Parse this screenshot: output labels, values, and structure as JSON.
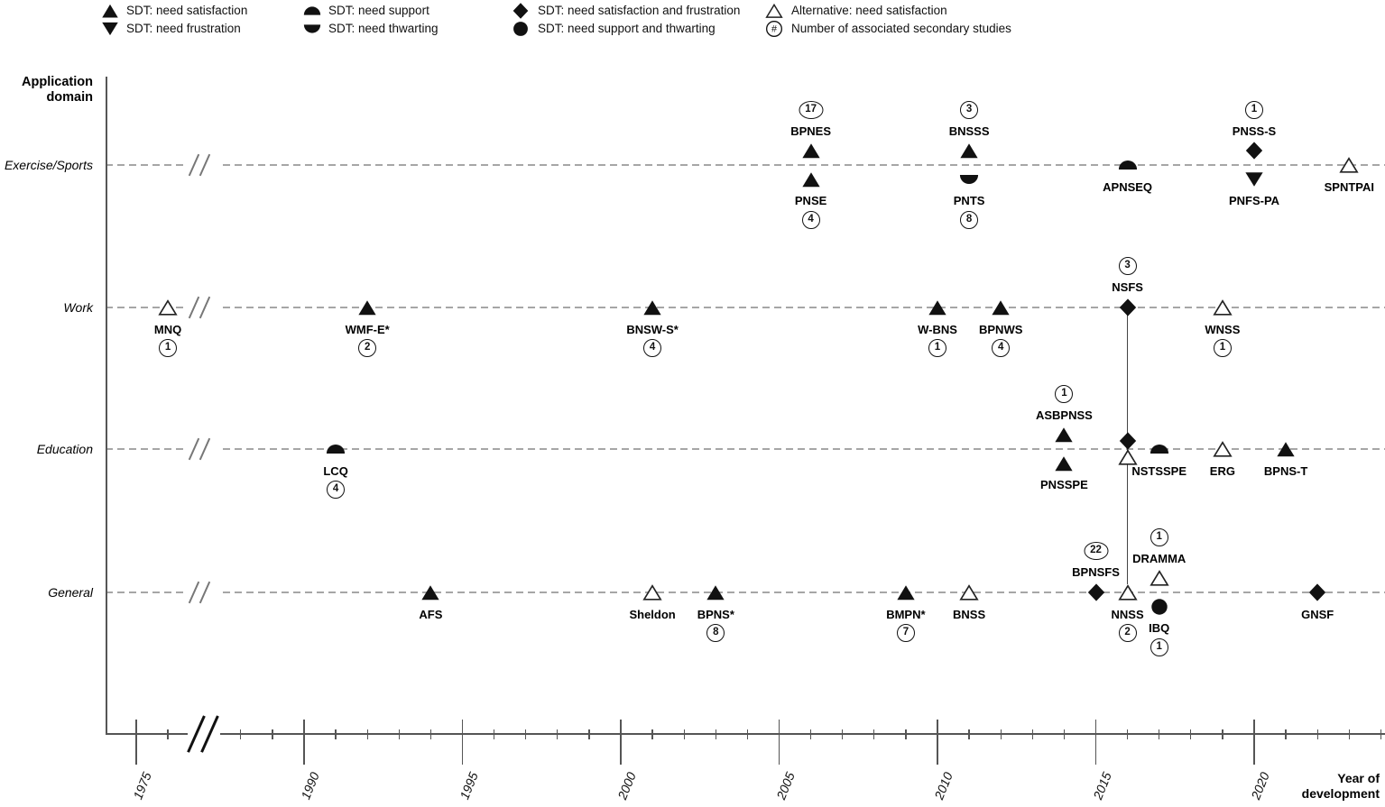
{
  "colors": {
    "marker_fill": "#111111",
    "open_marker_stroke": "#222222",
    "dashed_row_line": "#a6a6a6",
    "axis": "#555555",
    "connector": "#444444",
    "text": "#000000",
    "background": "#ffffff"
  },
  "legend": {
    "items": [
      {
        "icon": "triangle-up-filled-icon",
        "label": "SDT: need satisfaction"
      },
      {
        "icon": "triangle-down-filled-icon",
        "label": "SDT: need frustration"
      },
      {
        "icon": "half-circle-top-icon",
        "label": "SDT: need support"
      },
      {
        "icon": "half-circle-bottom-icon",
        "label": "SDT: need thwarting"
      },
      {
        "icon": "diamond-filled-icon",
        "label": "SDT: need satisfaction and frustration"
      },
      {
        "icon": "circle-filled-icon",
        "label": "SDT: need support and thwarting"
      },
      {
        "icon": "triangle-up-open-icon",
        "label": "Alternative: need satisfaction"
      },
      {
        "icon": "circled-hash-icon",
        "label": "Number of associated secondary studies"
      }
    ]
  },
  "y_axis": {
    "title_line1": "Application",
    "title_line2": "domain"
  },
  "x_axis": {
    "title_line1": "Year of",
    "title_line2": "development"
  },
  "chart_data": {
    "type": "scatter",
    "title": "",
    "xlabel": "Year of development",
    "ylabel": "Application domain",
    "legend_position": "top",
    "grid": "dashed horizontal row lines per domain",
    "x_major_ticks": [
      1975,
      1990,
      1995,
      2000,
      2005,
      2010,
      2015,
      2020
    ],
    "x_axis_break": {
      "after_year": 1976,
      "before_year": 1988
    },
    "x_range": [
      1975,
      2024
    ],
    "domains": [
      "Exercise/Sports",
      "Work",
      "Education",
      "General"
    ],
    "marker_types": [
      "need_satisfaction",
      "need_frustration",
      "need_support",
      "need_thwarting",
      "need_satisfaction_and_frustration",
      "need_support_and_thwarting",
      "alternative_need_satisfaction"
    ],
    "points": [
      {
        "label": "BPNES",
        "year": 2006,
        "domain": "Exercise/Sports",
        "marker": "need_satisfaction",
        "pos": "above",
        "count": 17
      },
      {
        "label": "PNSE",
        "year": 2006,
        "domain": "Exercise/Sports",
        "marker": "need_satisfaction",
        "pos": "below",
        "count": 4
      },
      {
        "label": "BNSSS",
        "year": 2011,
        "domain": "Exercise/Sports",
        "marker": "need_satisfaction",
        "pos": "above",
        "count": 3
      },
      {
        "label": "PNTS",
        "year": 2011,
        "domain": "Exercise/Sports",
        "marker": "need_thwarting",
        "pos": "below",
        "count": 8
      },
      {
        "label": "APNSEQ",
        "year": 2016,
        "domain": "Exercise/Sports",
        "marker": "need_support",
        "pos": "on",
        "count": null
      },
      {
        "label": "PNSS-S",
        "year": 2020,
        "domain": "Exercise/Sports",
        "marker": "need_satisfaction_and_frustration",
        "pos": "above",
        "count": 1
      },
      {
        "label": "PNFS-PA",
        "year": 2020,
        "domain": "Exercise/Sports",
        "marker": "need_frustration",
        "pos": "below",
        "count": null
      },
      {
        "label": "SPNTPAI",
        "year": 2023,
        "domain": "Exercise/Sports",
        "marker": "alternative_need_satisfaction",
        "pos": "on",
        "count": null
      },
      {
        "label": "MNQ",
        "year": 1976,
        "domain": "Work",
        "marker": "alternative_need_satisfaction",
        "pos": "on",
        "count": 1
      },
      {
        "label": "WMF-E*",
        "year": 1992,
        "domain": "Work",
        "marker": "need_satisfaction",
        "pos": "on",
        "count": 2
      },
      {
        "label": "BNSW-S*",
        "year": 2001,
        "domain": "Work",
        "marker": "need_satisfaction",
        "pos": "on",
        "count": 4
      },
      {
        "label": "W-BNS",
        "year": 2010,
        "domain": "Work",
        "marker": "need_satisfaction",
        "pos": "on",
        "count": 1
      },
      {
        "label": "BPNWS",
        "year": 2012,
        "domain": "Work",
        "marker": "need_satisfaction",
        "pos": "on",
        "count": 4
      },
      {
        "label": "NSFS",
        "year": 2016,
        "domain": "Work",
        "marker": "need_satisfaction_and_frustration",
        "pos": "on",
        "count": 3,
        "label_side": "above"
      },
      {
        "label": "WNSS",
        "year": 2019,
        "domain": "Work",
        "marker": "alternative_need_satisfaction",
        "pos": "on",
        "count": 1
      },
      {
        "label": "LCQ",
        "year": 1991,
        "domain": "Education",
        "marker": "need_support",
        "pos": "on",
        "count": 4
      },
      {
        "label": "ASBPNSS",
        "year": 2014,
        "domain": "Education",
        "marker": "need_satisfaction",
        "pos": "above",
        "count": 1
      },
      {
        "label": "PNSSPE",
        "year": 2014,
        "domain": "Education",
        "marker": "need_satisfaction",
        "pos": "below",
        "count": null
      },
      {
        "label": "",
        "year": 2016,
        "domain": "Education",
        "marker": "need_satisfaction_and_frustration",
        "pos": "above_tight",
        "count": null
      },
      {
        "label": "",
        "year": 2016,
        "domain": "Education",
        "marker": "alternative_need_satisfaction",
        "pos": "below_tight",
        "count": null
      },
      {
        "label": "NSTSSPE",
        "year": 2017,
        "domain": "Education",
        "marker": "need_support",
        "pos": "on",
        "count": null
      },
      {
        "label": "ERG",
        "year": 2019,
        "domain": "Education",
        "marker": "alternative_need_satisfaction",
        "pos": "on",
        "count": null
      },
      {
        "label": "BPNS-T",
        "year": 2021,
        "domain": "Education",
        "marker": "need_satisfaction",
        "pos": "on",
        "count": null
      },
      {
        "label": "AFS",
        "year": 1994,
        "domain": "General",
        "marker": "need_satisfaction",
        "pos": "on",
        "count": null
      },
      {
        "label": "Sheldon",
        "year": 2001,
        "domain": "General",
        "marker": "alternative_need_satisfaction",
        "pos": "on",
        "count": null
      },
      {
        "label": "BPNS*",
        "year": 2003,
        "domain": "General",
        "marker": "need_satisfaction",
        "pos": "on",
        "count": 8
      },
      {
        "label": "BMPN*",
        "year": 2009,
        "domain": "General",
        "marker": "need_satisfaction",
        "pos": "on",
        "count": 7
      },
      {
        "label": "BNSS",
        "year": 2011,
        "domain": "General",
        "marker": "alternative_need_satisfaction",
        "pos": "on",
        "count": null
      },
      {
        "label": "BPNSFS",
        "year": 2015,
        "domain": "General",
        "marker": "need_satisfaction_and_frustration",
        "pos": "on",
        "count": 22,
        "label_side": "above"
      },
      {
        "label": "NNSS",
        "year": 2016,
        "domain": "General",
        "marker": "alternative_need_satisfaction",
        "pos": "on",
        "count": 2
      },
      {
        "label": "DRAMMA",
        "year": 2017,
        "domain": "General",
        "marker": "alternative_need_satisfaction",
        "pos": "above",
        "count": 1
      },
      {
        "label": "IBQ",
        "year": 2017,
        "domain": "General",
        "marker": "need_support_and_thwarting",
        "pos": "below",
        "count": 1
      },
      {
        "label": "GNSF",
        "year": 2022,
        "domain": "General",
        "marker": "need_satisfaction_and_frustration",
        "pos": "on",
        "count": null
      }
    ],
    "connectors": [
      {
        "year": 2016,
        "from_domain": "Work",
        "to_domain": "General"
      }
    ]
  }
}
